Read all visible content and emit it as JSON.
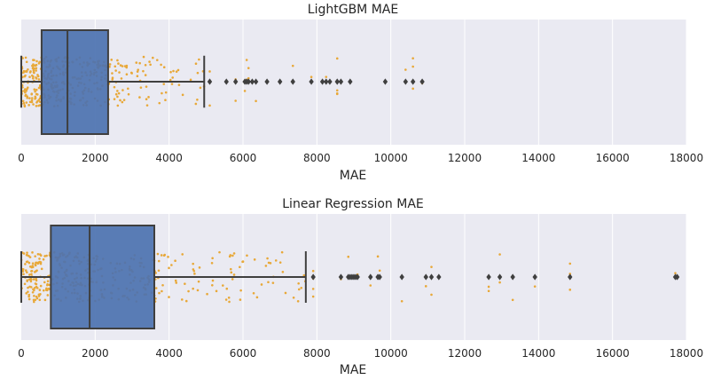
{
  "chart_data": [
    {
      "type": "box",
      "title": "LightGBM MAE",
      "xlabel": "MAE",
      "ylabel": "",
      "xlim": [
        0,
        18000
      ],
      "xticks": [
        0,
        2000,
        4000,
        6000,
        8000,
        10000,
        12000,
        14000,
        16000,
        18000
      ],
      "grid": true,
      "box": {
        "q1": 550,
        "median": 1250,
        "q3": 2350,
        "whisker_low": 0,
        "whisker_high": 4950
      },
      "outliers": [
        5100,
        5550,
        5800,
        6050,
        6100,
        6150,
        6250,
        6350,
        6650,
        7000,
        7350,
        7850,
        8150,
        8250,
        8350,
        8550,
        8650,
        8900,
        9850,
        10400,
        10600,
        10850
      ],
      "strip": {
        "count": 420,
        "seed": 7,
        "min": 0,
        "max": 10900
      },
      "colors": {
        "box": "#4c72b0",
        "line": "#3f3f3f",
        "points": "#e8a838",
        "outlier": "#3f3f3f"
      }
    },
    {
      "type": "box",
      "title": "Linear Regression MAE",
      "xlabel": "MAE",
      "ylabel": "",
      "xlim": [
        0,
        18000
      ],
      "xticks": [
        0,
        2000,
        4000,
        6000,
        8000,
        10000,
        12000,
        14000,
        16000,
        18000
      ],
      "grid": true,
      "box": {
        "q1": 800,
        "median": 1850,
        "q3": 3600,
        "whisker_low": 0,
        "whisker_high": 7700
      },
      "outliers": [
        7900,
        8650,
        8850,
        8900,
        8950,
        9000,
        9050,
        9100,
        9450,
        9650,
        9700,
        10300,
        10950,
        11100,
        11300,
        12650,
        12950,
        13300,
        13900,
        14850,
        17700,
        17750
      ],
      "strip": {
        "count": 420,
        "seed": 13,
        "min": 0,
        "max": 17750
      },
      "colors": {
        "box": "#4c72b0",
        "line": "#3f3f3f",
        "points": "#e8a838",
        "outlier": "#3f3f3f"
      }
    }
  ]
}
